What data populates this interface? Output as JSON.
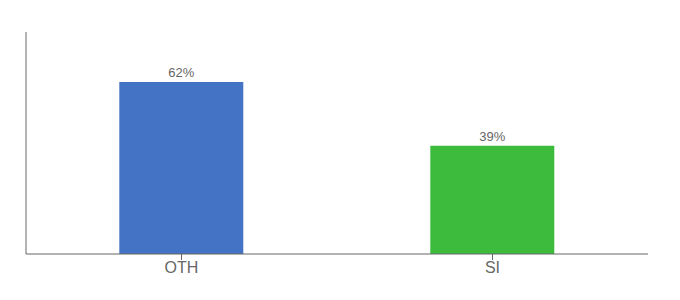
{
  "chart_data": {
    "type": "bar",
    "categories": [
      "OTH",
      "SI"
    ],
    "values": [
      62,
      39
    ],
    "value_labels": [
      "62%",
      "39%"
    ],
    "colors": [
      "#4472c4",
      "#3dbb3d"
    ],
    "ylim": [
      0,
      80
    ],
    "data_labels": true,
    "tick_labels": "x",
    "grid": false
  }
}
